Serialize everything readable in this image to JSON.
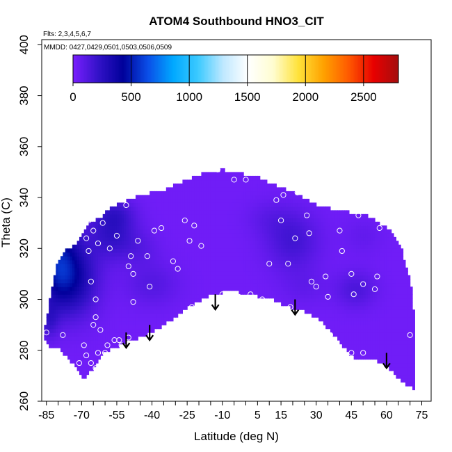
{
  "chart_data": {
    "type": "heatmap",
    "title": "ATOM4 Southbound HNO3_CIT",
    "subtitle_flights": "Flts: 2,3,4,5,6,7",
    "subtitle_dates": "MMDD: 0427,0429,0501,0503,0506,0509",
    "xlabel": "Latitude (deg N)",
    "ylabel": "Theta (C)",
    "xlim": [
      -87,
      79
    ],
    "ylim": [
      260,
      402
    ],
    "x_ticks_minor_step": 5,
    "x_tick_labels": [
      -85,
      -70,
      -55,
      -40,
      -25,
      -10,
      5,
      15,
      30,
      45,
      60,
      75
    ],
    "y_ticks": [
      260,
      280,
      300,
      320,
      340,
      360,
      380,
      400
    ],
    "colorbar": {
      "range": [
        0,
        2800
      ],
      "tick_values": [
        0,
        500,
        1000,
        1500,
        2000,
        2500
      ],
      "colors": [
        "#7a1fff",
        "#3312c8",
        "#00009a",
        "#0a4fe8",
        "#00a8ff",
        "#3ccaff",
        "#bfe8ff",
        "#ffffff",
        "#fffdd0",
        "#ffe23a",
        "#ffa200",
        "#ff5a00",
        "#e80000",
        "#a40e0e"
      ]
    },
    "field": {
      "base_value": 30,
      "upper_boundary": [
        [
          -86,
          287
        ],
        [
          -85,
          292
        ],
        [
          -84,
          297
        ],
        [
          -83,
          303
        ],
        [
          -82,
          307
        ],
        [
          -81,
          313
        ],
        [
          -79,
          317
        ],
        [
          -77,
          319
        ],
        [
          -74,
          321
        ],
        [
          -71,
          323
        ],
        [
          -68,
          329
        ],
        [
          -65,
          331
        ],
        [
          -62,
          332
        ],
        [
          -59,
          335
        ],
        [
          -56,
          337
        ],
        [
          -53,
          338
        ],
        [
          -50,
          339
        ],
        [
          -45,
          341
        ],
        [
          -40,
          342
        ],
        [
          -35,
          343
        ],
        [
          -30,
          345
        ],
        [
          -25,
          347
        ],
        [
          -20,
          349
        ],
        [
          -15,
          350
        ],
        [
          -10,
          351
        ],
        [
          -5,
          350
        ],
        [
          0,
          349
        ],
        [
          5,
          348
        ],
        [
          10,
          346
        ],
        [
          15,
          344
        ],
        [
          20,
          342
        ],
        [
          25,
          340
        ],
        [
          30,
          337
        ],
        [
          35,
          336
        ],
        [
          40,
          335
        ],
        [
          45,
          334
        ],
        [
          50,
          334
        ],
        [
          55,
          331
        ],
        [
          59,
          329
        ],
        [
          62,
          327
        ],
        [
          64,
          324
        ],
        [
          66,
          321
        ],
        [
          67,
          318
        ],
        [
          68,
          314
        ],
        [
          69,
          311
        ],
        [
          70,
          307
        ],
        [
          71,
          303
        ],
        [
          71,
          299
        ],
        [
          72,
          294
        ],
        [
          72,
          288
        ],
        [
          72,
          284
        ]
      ],
      "lower_boundary": [
        [
          72,
          284
        ],
        [
          72,
          265
        ],
        [
          69,
          266
        ],
        [
          66,
          268
        ],
        [
          61,
          273
        ],
        [
          56,
          276
        ],
        [
          51,
          277
        ],
        [
          46,
          277
        ],
        [
          41,
          282
        ],
        [
          36,
          288
        ],
        [
          31,
          292
        ],
        [
          26,
          295
        ],
        [
          21,
          296
        ],
        [
          16,
          298
        ],
        [
          11,
          300
        ],
        [
          6,
          301
        ],
        [
          1,
          302
        ],
        [
          -4,
          303
        ],
        [
          -9,
          303
        ],
        [
          -14,
          302
        ],
        [
          -20,
          299
        ],
        [
          -25,
          297
        ],
        [
          -30,
          293
        ],
        [
          -35,
          290
        ],
        [
          -40,
          287
        ],
        [
          -45,
          285
        ],
        [
          -50,
          284
        ],
        [
          -53,
          282
        ],
        [
          -56,
          281
        ],
        [
          -59,
          280
        ],
        [
          -61,
          279
        ],
        [
          -63,
          275
        ],
        [
          -65,
          273
        ],
        [
          -67,
          271
        ],
        [
          -69,
          268
        ],
        [
          -71,
          272
        ],
        [
          -74,
          275
        ],
        [
          -76,
          278
        ],
        [
          -78,
          279
        ],
        [
          -80,
          281
        ],
        [
          -82,
          281
        ],
        [
          -84,
          282
        ],
        [
          -86,
          284
        ]
      ],
      "blobs": [
        {
          "lon": -80,
          "theta": 314,
          "value": 430,
          "sx": 6,
          "sy": 11
        },
        {
          "lon": -72,
          "theta": 308,
          "value": 240,
          "sx": 7,
          "sy": 10
        },
        {
          "lon": -57,
          "theta": 326,
          "value": 190,
          "sx": 7,
          "sy": 7
        },
        {
          "lon": -45,
          "theta": 320,
          "value": 60,
          "sx": 6,
          "sy": 5
        },
        {
          "lon": -40,
          "theta": 306,
          "value": 85,
          "sx": 8,
          "sy": 6
        },
        {
          "lon": 20,
          "theta": 323,
          "value": 140,
          "sx": 8,
          "sy": 8
        },
        {
          "lon": 10,
          "theta": 332,
          "value": 50,
          "sx": 7,
          "sy": 5
        },
        {
          "lon": 47,
          "theta": 304,
          "value": 110,
          "sx": 6,
          "sy": 5
        },
        {
          "lon": 25,
          "theta": 305,
          "value": 45,
          "sx": 7,
          "sy": 5
        },
        {
          "lon": -84,
          "theta": 292,
          "value": 150,
          "sx": 3,
          "sy": 5
        },
        {
          "lon": -56,
          "theta": 334,
          "value": 110,
          "sx": 6,
          "sy": 4
        },
        {
          "lon": 50,
          "theta": 325,
          "value": 40,
          "sx": 6,
          "sy": 5
        }
      ]
    },
    "observations": [
      [
        -78,
        321
      ],
      [
        -67,
        331
      ],
      [
        -65,
        327
      ],
      [
        -63,
        322
      ],
      [
        -61,
        330
      ],
      [
        -58,
        320
      ],
      [
        -55,
        325
      ],
      [
        -51,
        337
      ],
      [
        -49,
        317
      ],
      [
        -50,
        313
      ],
      [
        -48,
        310
      ],
      [
        -46,
        323
      ],
      [
        -42,
        317
      ],
      [
        -41,
        305
      ],
      [
        -39,
        327
      ],
      [
        -36,
        328
      ],
      [
        -31,
        315
      ],
      [
        -29,
        312
      ],
      [
        -26,
        331
      ],
      [
        -24,
        323
      ],
      [
        -22,
        329
      ],
      [
        -19,
        321
      ],
      [
        -12,
        351
      ],
      [
        -5,
        347
      ],
      [
        0,
        347
      ],
      [
        -23,
        297
      ],
      [
        -10,
        302
      ],
      [
        -3,
        301
      ],
      [
        2,
        302
      ],
      [
        7,
        300
      ],
      [
        10,
        314
      ],
      [
        13,
        339
      ],
      [
        15,
        331
      ],
      [
        16,
        341
      ],
      [
        18,
        314
      ],
      [
        19,
        297
      ],
      [
        21,
        324
      ],
      [
        22,
        342
      ],
      [
        26,
        333
      ],
      [
        27,
        326
      ],
      [
        28,
        307
      ],
      [
        30,
        305
      ],
      [
        30,
        291
      ],
      [
        34,
        309
      ],
      [
        35,
        301
      ],
      [
        36,
        286
      ],
      [
        40,
        327
      ],
      [
        41,
        319
      ],
      [
        45,
        310
      ],
      [
        46,
        302
      ],
      [
        48,
        333
      ],
      [
        50,
        306
      ],
      [
        55,
        304
      ],
      [
        56,
        309
      ],
      [
        57,
        328
      ],
      [
        58,
        332
      ],
      [
        45,
        279
      ],
      [
        50,
        279
      ],
      [
        70,
        286
      ],
      [
        -68,
        324
      ],
      [
        -67,
        319
      ],
      [
        -66,
        307
      ],
      [
        -64,
        300
      ],
      [
        -64,
        293
      ],
      [
        -65,
        290
      ],
      [
        -62,
        288
      ],
      [
        -63,
        270
      ],
      [
        -66,
        266
      ],
      [
        -66,
        275
      ],
      [
        -68,
        278
      ],
      [
        -69,
        282
      ],
      [
        -71,
        275
      ],
      [
        -78,
        286
      ],
      [
        -85,
        287
      ],
      [
        -60,
        279
      ],
      [
        -59,
        282
      ],
      [
        -56,
        284
      ],
      [
        -54,
        284
      ],
      [
        -53,
        282
      ],
      [
        -50,
        285
      ],
      [
        -48,
        299
      ],
      [
        -64,
        273
      ],
      [
        -63,
        279
      ]
    ],
    "arrows": [
      {
        "lon": -51,
        "theta_top": 287,
        "theta_tip": 281
      },
      {
        "lon": -41,
        "theta_top": 290,
        "theta_tip": 284
      },
      {
        "lon": -13,
        "theta_top": 302,
        "theta_tip": 296
      },
      {
        "lon": 21,
        "theta_top": 300,
        "theta_tip": 294
      },
      {
        "lon": 60,
        "theta_top": 279,
        "theta_tip": 273
      }
    ]
  }
}
